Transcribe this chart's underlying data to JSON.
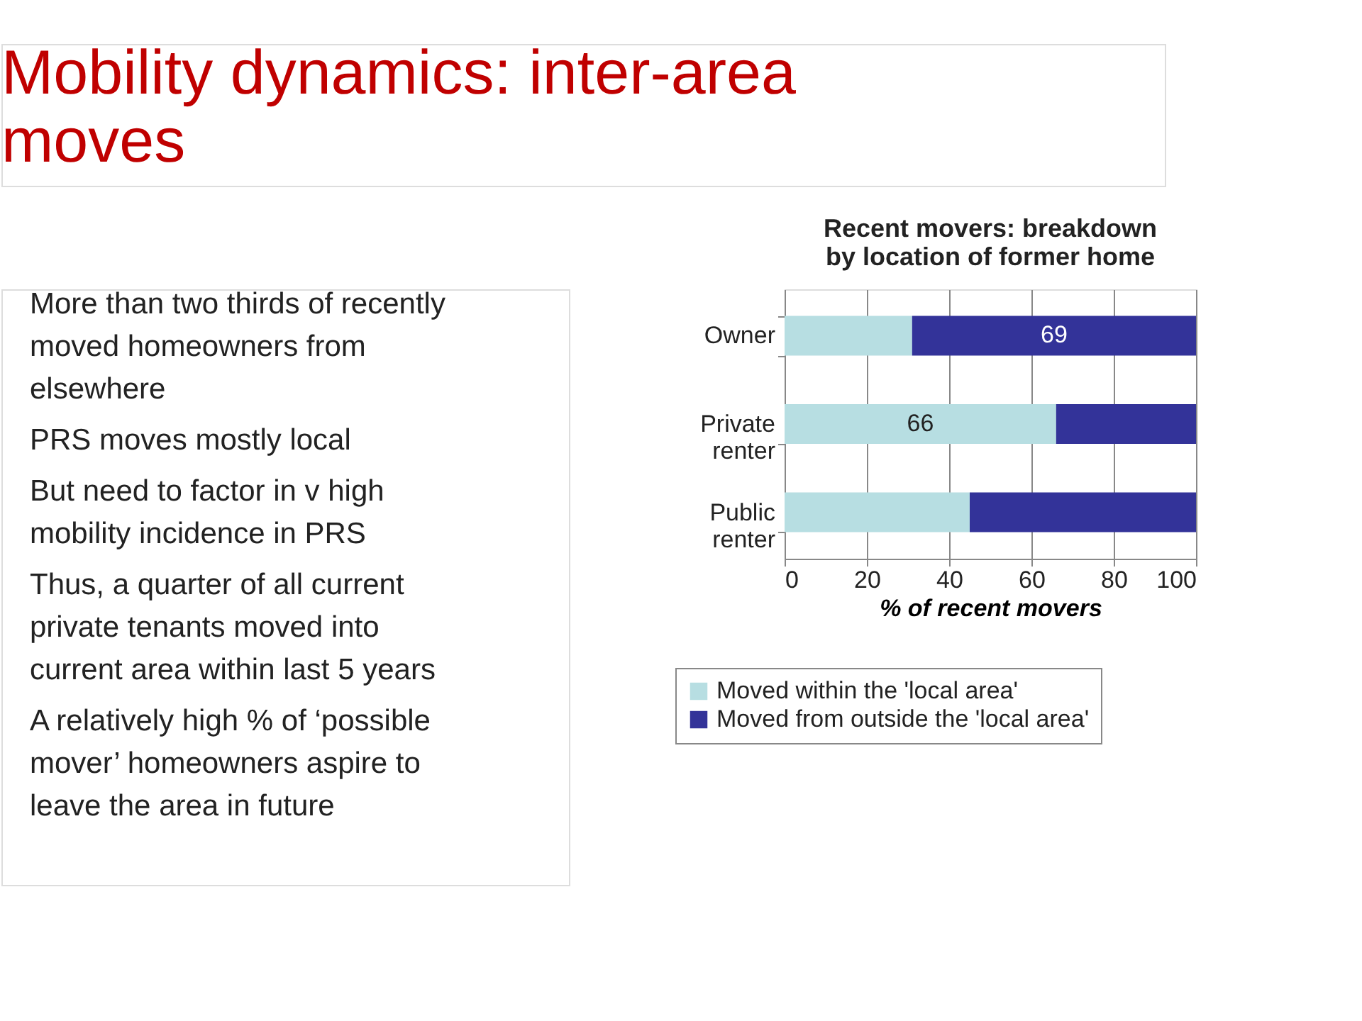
{
  "chart_data": {
    "type": "bar",
    "orientation": "horizontal",
    "stacked": true,
    "title": "Recent movers: breakdown\nby location of former home",
    "xlabel": "% of recent movers",
    "categories": [
      "Owner",
      "Private renter",
      "Public renter"
    ],
    "series": [
      {
        "name": "Moved within the 'local area'",
        "color": "#b7dee2",
        "values": [
          31,
          66,
          45
        ],
        "value_labels": [
          null,
          "66",
          null
        ]
      },
      {
        "name": "Moved from outside the 'local area'",
        "color": "#333399",
        "values": [
          69,
          34,
          55
        ],
        "value_labels": [
          "69",
          null,
          null
        ]
      }
    ],
    "xlim": [
      0,
      100
    ],
    "xticks": [
      0,
      20,
      40,
      60,
      80,
      100
    ],
    "grid": "x",
    "legend": "bottom",
    "annotations": [
      "Mobility dynamics: inter-area\nmoves",
      "More than two thirds of recently\nmoved homeowners from\nelsewhere",
      "PRS moves mostly local",
      "But need to factor in v high\nmobility incidence in PRS",
      "Thus, a quarter of all current\nprivate tenants moved into\ncurrent area within last 5 years",
      "A relatively high % of ‘possible\nmover’ homeowners aspire to\nleave the area in future"
    ]
  }
}
